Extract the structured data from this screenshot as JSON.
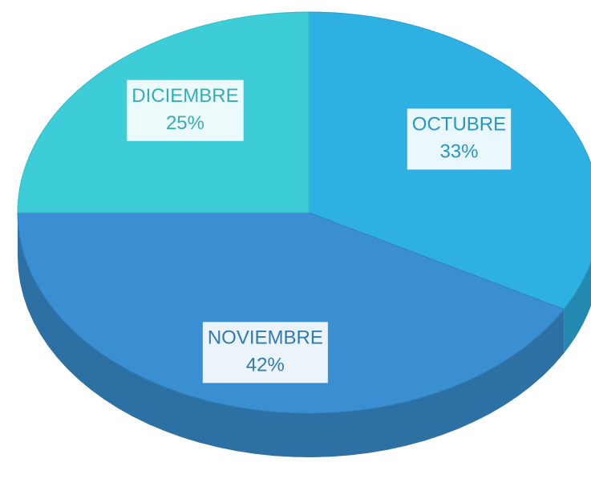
{
  "chart_data": {
    "type": "pie",
    "categories": [
      "OCTUBRE",
      "NOVIEMBRE",
      "DICIEMBRE"
    ],
    "values": [
      33,
      42,
      25
    ],
    "value_labels": [
      "33%",
      "42%",
      "25%"
    ],
    "colors": [
      "#2eb0e2",
      "#3a8fd2",
      "#3ccdd8"
    ]
  }
}
